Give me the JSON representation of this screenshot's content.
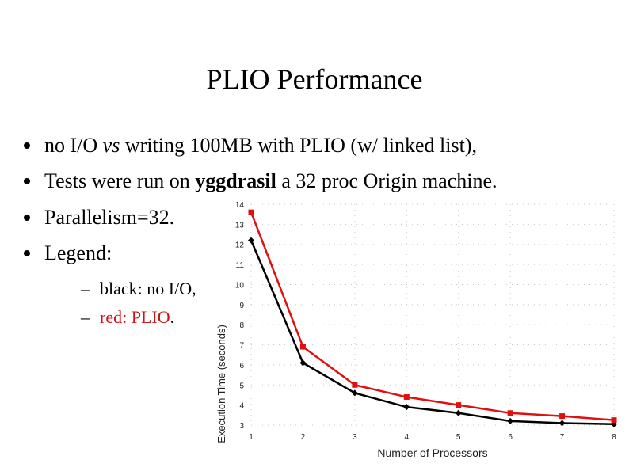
{
  "title": "PLIO Performance",
  "bullets": {
    "b1": {
      "pre": "no I/O ",
      "em": "vs",
      "post": " writing 100MB with PLIO (w/ linked list),"
    },
    "b2": {
      "pre": "Tests were run on ",
      "strong": "yggdrasil",
      "post": " a 32 proc Origin machine."
    },
    "b3": {
      "text": "Parallelism=32."
    },
    "b4": {
      "text": "Legend:"
    }
  },
  "legend": {
    "black": {
      "dash": "–",
      "text": "black: no I/O,"
    },
    "red": {
      "dash": "–",
      "text": "red: PLIO",
      "suffix": "."
    }
  },
  "colors": {
    "black_series": "#000000",
    "red_series": "#e01010",
    "grid": "#c8c8c8"
  },
  "chart_data": {
    "type": "line",
    "xlabel": "Number of Processors",
    "ylabel": "Execution Time (seconds)",
    "xlim": [
      1,
      8
    ],
    "ylim": [
      3,
      14
    ],
    "x": [
      1,
      2,
      3,
      4,
      5,
      6,
      7,
      8
    ],
    "xticks": [
      "1",
      "2",
      "3",
      "4",
      "5",
      "6",
      "7",
      "8"
    ],
    "yticks": [
      "3",
      "4",
      "5",
      "6",
      "7",
      "8",
      "9",
      "10",
      "11",
      "12",
      "13",
      "14"
    ],
    "grid": true,
    "series": [
      {
        "name": "no I/O",
        "color": "#000000",
        "marker": "diamond",
        "values": [
          12.2,
          6.1,
          4.6,
          3.9,
          3.6,
          3.2,
          3.1,
          3.05
        ]
      },
      {
        "name": "PLIO",
        "color": "#e01010",
        "marker": "square",
        "values": [
          13.6,
          6.9,
          5.0,
          4.4,
          4.0,
          3.6,
          3.45,
          3.25
        ]
      }
    ]
  }
}
